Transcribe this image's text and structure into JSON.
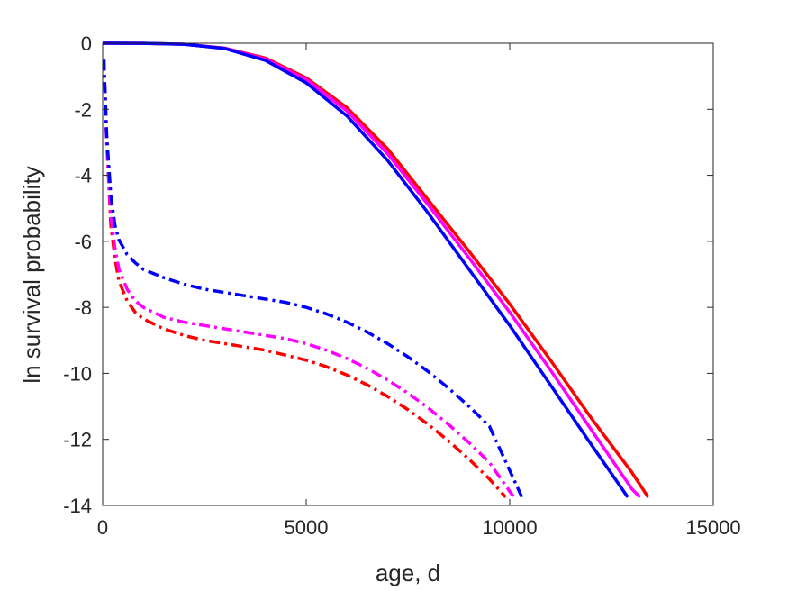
{
  "chart_data": {
    "type": "line",
    "title": "",
    "xlabel": "age, d",
    "ylabel": "ln survival probability",
    "xlim": [
      0,
      15000
    ],
    "ylim": [
      -14,
      0
    ],
    "x_ticks": [
      0,
      5000,
      10000,
      15000
    ],
    "x_tick_labels": [
      "0",
      "5000",
      "10000",
      "15000"
    ],
    "y_ticks": [
      0,
      -2,
      -4,
      -6,
      -8,
      -10,
      -12,
      -14
    ],
    "y_tick_labels": [
      "0",
      "-2",
      "-4",
      "-6",
      "-8",
      "-10",
      "-12",
      "-14"
    ],
    "grid": false,
    "legend": "none",
    "colors": {
      "red": "#ff0000",
      "magenta": "#ff00ff",
      "blue": "#0000ff",
      "axis": "#262626"
    },
    "series": [
      {
        "color": "#ff0000",
        "style": "solid",
        "x": [
          0,
          1000,
          2000,
          3000,
          4000,
          5000,
          6000,
          7000,
          8000,
          9000,
          10000,
          11000,
          12000,
          13000,
          13400
        ],
        "y": [
          0,
          -0.002,
          -0.03,
          -0.15,
          -0.45,
          -1.05,
          -1.95,
          -3.2,
          -4.75,
          -6.3,
          -7.9,
          -9.6,
          -11.35,
          -13.0,
          -13.75
        ]
      },
      {
        "color": "#ff00ff",
        "style": "solid",
        "x": [
          0,
          1000,
          2000,
          3000,
          4000,
          5000,
          6000,
          7000,
          8000,
          9000,
          10000,
          11000,
          12000,
          13000,
          13200
        ],
        "y": [
          0,
          -0.002,
          -0.03,
          -0.15,
          -0.48,
          -1.1,
          -2.05,
          -3.35,
          -4.9,
          -6.5,
          -8.15,
          -9.9,
          -11.7,
          -13.5,
          -13.75
        ]
      },
      {
        "color": "#0000ff",
        "style": "solid",
        "x": [
          0,
          1000,
          2000,
          3000,
          4000,
          5000,
          6000,
          7000,
          8000,
          9000,
          10000,
          11000,
          12000,
          12900
        ],
        "y": [
          0,
          -0.002,
          -0.03,
          -0.16,
          -0.52,
          -1.2,
          -2.2,
          -3.55,
          -5.15,
          -6.85,
          -8.55,
          -10.35,
          -12.15,
          -13.75
        ]
      },
      {
        "color": "#ff0000",
        "style": "dashdot",
        "x": [
          30,
          100,
          200,
          300,
          400,
          600,
          800,
          1000,
          1500,
          2000,
          2500,
          3000,
          3500,
          4000,
          4500,
          5000,
          5500,
          6000,
          6500,
          7000,
          7500,
          8000,
          8500,
          9000,
          9500,
          9900
        ],
        "y": [
          -0.5,
          -3.0,
          -5.5,
          -6.5,
          -7.2,
          -7.8,
          -8.15,
          -8.35,
          -8.65,
          -8.85,
          -9.0,
          -9.1,
          -9.2,
          -9.3,
          -9.45,
          -9.6,
          -9.8,
          -10.05,
          -10.35,
          -10.7,
          -11.1,
          -11.55,
          -12.05,
          -12.6,
          -13.2,
          -13.75
        ]
      },
      {
        "color": "#ff00ff",
        "style": "dashdot",
        "x": [
          30,
          100,
          200,
          300,
          400,
          600,
          800,
          1000,
          1500,
          2000,
          2500,
          3000,
          3500,
          4000,
          4500,
          5000,
          5500,
          6000,
          6500,
          7000,
          7500,
          8000,
          8500,
          9000,
          9500,
          10100
        ],
        "y": [
          -0.5,
          -3.0,
          -5.2,
          -6.2,
          -6.85,
          -7.45,
          -7.8,
          -8.0,
          -8.3,
          -8.45,
          -8.55,
          -8.65,
          -8.75,
          -8.85,
          -8.95,
          -9.1,
          -9.3,
          -9.55,
          -9.85,
          -10.2,
          -10.6,
          -11.05,
          -11.55,
          -12.1,
          -12.7,
          -13.75
        ]
      },
      {
        "color": "#0000ff",
        "style": "dashdot",
        "x": [
          30,
          100,
          200,
          300,
          400,
          600,
          800,
          1000,
          1500,
          2000,
          2500,
          3000,
          3500,
          4000,
          4500,
          5000,
          5500,
          6000,
          6500,
          7000,
          7500,
          8000,
          8500,
          9000,
          9500,
          10300
        ],
        "y": [
          -0.5,
          -2.8,
          -4.6,
          -5.5,
          -5.95,
          -6.4,
          -6.65,
          -6.85,
          -7.1,
          -7.3,
          -7.45,
          -7.55,
          -7.65,
          -7.75,
          -7.85,
          -8.0,
          -8.2,
          -8.45,
          -8.75,
          -9.1,
          -9.5,
          -9.95,
          -10.45,
          -11.0,
          -11.6,
          -13.75
        ]
      }
    ]
  }
}
